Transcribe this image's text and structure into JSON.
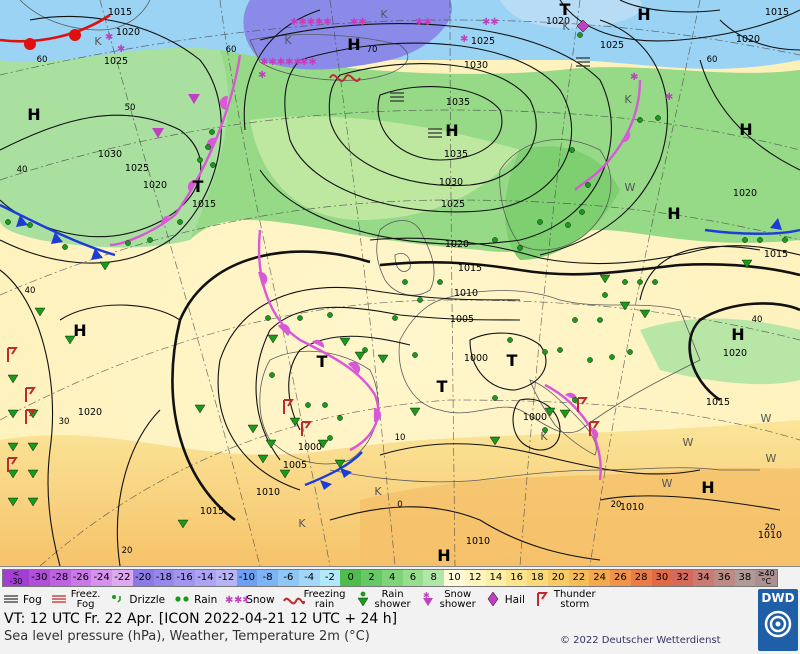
{
  "map": {
    "pressure_labels": [
      "1015",
      "1020",
      "1025",
      "1030",
      "1035",
      "1010",
      "1005",
      "1000"
    ],
    "temperature_labels": [
      "60",
      "50",
      "40",
      "30",
      "20",
      "10",
      "0",
      "70"
    ],
    "high_letter": "H",
    "low_letter": "T",
    "k_marks": [
      "K",
      "K",
      "K",
      "K",
      "K",
      "K",
      "K",
      "K"
    ],
    "w_marks": [
      "W",
      "W",
      "W",
      "W",
      "W"
    ]
  },
  "scale": {
    "below": "<\n-30",
    "cells": [
      "-30",
      "-28",
      "-26",
      "-24",
      "-22",
      "-20",
      "-18",
      "-16",
      "-14",
      "-12",
      "-10",
      "-8",
      "-6",
      "-4",
      "-2",
      "0",
      "2",
      "4",
      "6",
      "8",
      "10",
      "12",
      "14",
      "16",
      "18",
      "20",
      "22",
      "24",
      "26",
      "28",
      "30",
      "32",
      "34",
      "36",
      "38"
    ],
    "above": "≥40\n°C",
    "colors": [
      "#b04fd8",
      "#be63e0",
      "#c97ae6",
      "#d592ec",
      "#dda9f0",
      "#8c79e8",
      "#9687ec",
      "#a195ef",
      "#aca4f2",
      "#b7b4f5",
      "#6d9ff1",
      "#7eb3f4",
      "#8fc6f6",
      "#a1d8f8",
      "#b3e8fa",
      "#4ebd4e",
      "#66c966",
      "#7fd47a",
      "#98de8f",
      "#b0e6a7",
      "#fffad8",
      "#fff5c0",
      "#fcefa6",
      "#fbe58d",
      "#f9d978",
      "#f7cc66",
      "#f6bd57",
      "#f3aa4f",
      "#ef944a",
      "#ea7c45",
      "#e06a46",
      "#d56a5c",
      "#c97b73",
      "#bc8b86",
      "#b09b98"
    ]
  },
  "weather_legend": [
    {
      "icon": "fog-icon",
      "label": "Fog"
    },
    {
      "icon": "freezing-fog-icon",
      "label": "Freez.\nFog"
    },
    {
      "icon": "drizzle-icon",
      "label": "Drizzle"
    },
    {
      "icon": "rain-icon",
      "label": "Rain"
    },
    {
      "icon": "snow-icon",
      "label": "Snow"
    },
    {
      "icon": "freezing-rain-icon",
      "label": "Freezing\nrain"
    },
    {
      "icon": "rain-shower-icon",
      "label": "Rain\nshower"
    },
    {
      "icon": "snow-shower-icon",
      "label": "Snow\nshower"
    },
    {
      "icon": "hail-icon",
      "label": "Hail"
    },
    {
      "icon": "thunderstorm-icon",
      "label": "Thunder\nstorm"
    }
  ],
  "footer": {
    "valid_time": "VT: 12 UTC Fr.  22 Apr. [ICON 2022-04-21  12 UTC + 24 h]",
    "subtitle": "Sea level pressure (hPa), Weather, Temperature 2m (°C)",
    "copyright": "© 2022 Deutscher Wetterdienst",
    "logo": "DWD"
  },
  "colors": {
    "isobar": "#111111",
    "warm_front": "#d858d8",
    "cold_front": "#1c3cd8",
    "warm_front_red": "#e01010",
    "sea_warm": "#fff1bb",
    "land_green": "#9adf8a",
    "sea_blue": "#9ad3f3",
    "cold_purple": "#8a8be8",
    "hot_orange": "#f5bf5c",
    "rain_green": "#1a9a1a",
    "thunder_red": "#c0292e"
  }
}
